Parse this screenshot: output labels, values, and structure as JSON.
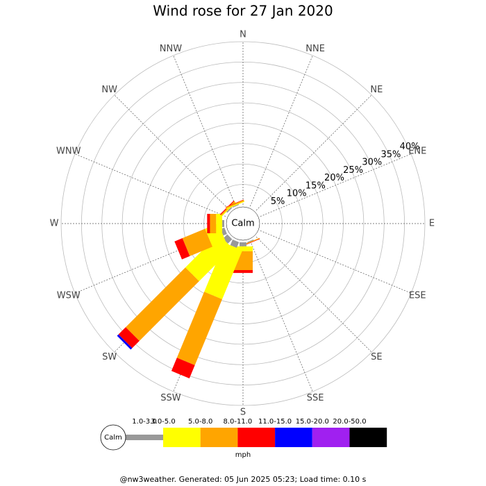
{
  "chart_data": {
    "type": "windrose",
    "title": "Wind rose for 27 Jan 2020",
    "calm_label": "Calm",
    "unit": "mph",
    "footer": "@nw3weather. Generated: 05 Jun 2025 05:23; Load time: 0.10 s",
    "categories": [
      "N",
      "NNE",
      "NE",
      "ENE",
      "E",
      "ESE",
      "SE",
      "SSE",
      "S",
      "SSW",
      "SW",
      "WSW",
      "W",
      "WNW",
      "NW",
      "NNW"
    ],
    "rlim": [
      0,
      40
    ],
    "rticks": [
      {
        "value": 5,
        "label": "5%"
      },
      {
        "value": 10,
        "label": "10%"
      },
      {
        "value": 15,
        "label": "15%"
      },
      {
        "value": 20,
        "label": "20%"
      },
      {
        "value": 25,
        "label": "25%"
      },
      {
        "value": 30,
        "label": "30%"
      },
      {
        "value": 35,
        "label": "35%"
      },
      {
        "value": 40,
        "label": "40%"
      }
    ],
    "series": [
      {
        "name": "1.0-3.0",
        "color": "#999999",
        "values": [
          0,
          0,
          0,
          0,
          0,
          0,
          0,
          0.2,
          1,
          1.5,
          1.5,
          1,
          0.5,
          0,
          0.3,
          0.2
        ]
      },
      {
        "name": "3.0-5.0",
        "color": "#ffff00",
        "values": [
          0,
          0,
          0,
          0,
          0,
          0,
          0,
          0,
          1.2,
          13,
          11.5,
          3.5,
          1.5,
          0,
          0.2,
          0.2
        ]
      },
      {
        "name": "5.0-8.0",
        "color": "#ffa500",
        "values": [
          0,
          0,
          0,
          0,
          0,
          0,
          0,
          0.2,
          4.6,
          17.5,
          20.7,
          6,
          1.5,
          0,
          0.3,
          0.3
        ]
      },
      {
        "name": "8.0-11.0",
        "color": "#ff0000",
        "values": [
          0,
          0,
          0,
          0,
          0,
          0,
          0,
          0.1,
          0.7,
          3.5,
          2.5,
          2.1,
          0.7,
          0,
          0.2,
          0.1
        ]
      },
      {
        "name": "11.0-15.0",
        "color": "#0000ff",
        "values": [
          0,
          0,
          0,
          0,
          0,
          0,
          0,
          0,
          0,
          0,
          0.5,
          0,
          0,
          0,
          0,
          0
        ]
      },
      {
        "name": "15.0-20.0",
        "color": "#a020f0",
        "values": [
          0,
          0,
          0,
          0,
          0,
          0,
          0,
          0,
          0,
          0,
          0,
          0,
          0,
          0,
          0,
          0
        ]
      },
      {
        "name": "20.0-50.0",
        "color": "#000000",
        "values": [
          0,
          0,
          0,
          0,
          0,
          0,
          0,
          0,
          0,
          0,
          0,
          0,
          0,
          0,
          0,
          0
        ]
      }
    ]
  }
}
